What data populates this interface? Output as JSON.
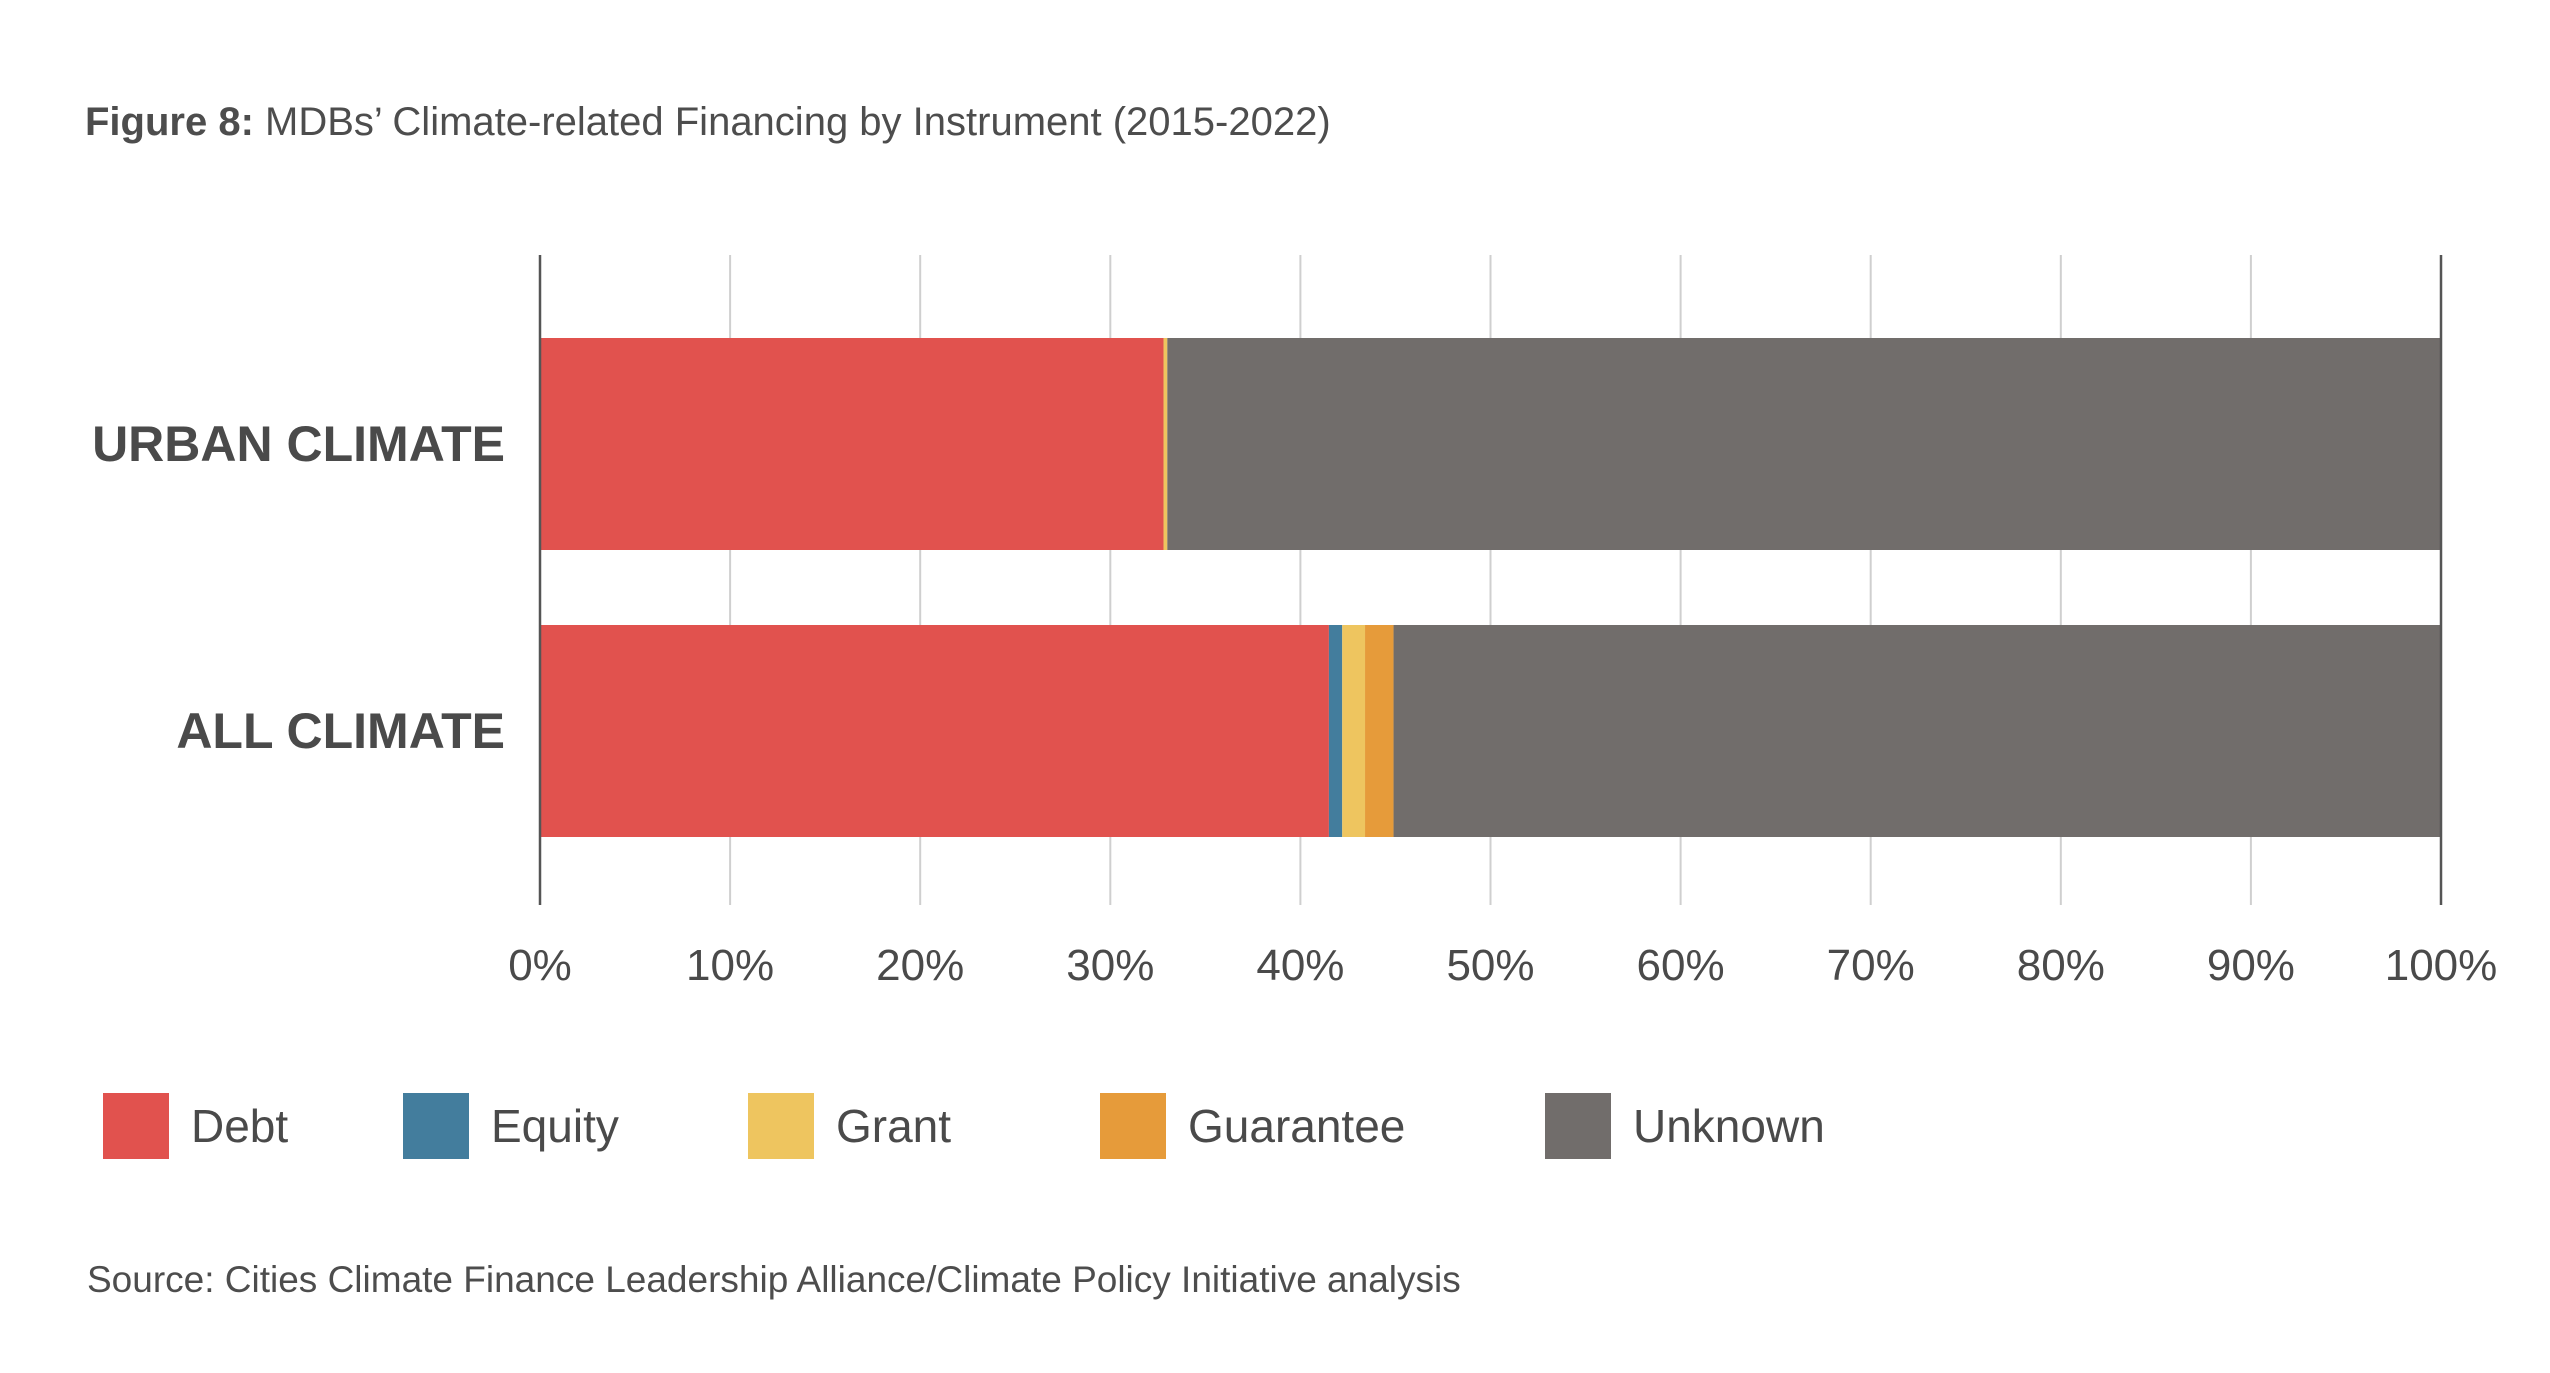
{
  "title": {
    "prefix": "Figure 8:",
    "text": " MDBs’ Climate-related Financing by Instrument (2015-2022)"
  },
  "source": "Source: Cities Climate Finance Leadership Alliance/Climate Policy Initiative analysis",
  "legend": [
    {
      "label": "Debt",
      "color": "#e1524e"
    },
    {
      "label": "Equity",
      "color": "#437d9d"
    },
    {
      "label": "Grant",
      "color": "#eec55f"
    },
    {
      "label": "Guarantee",
      "color": "#e69b3a"
    },
    {
      "label": "Unknown",
      "color": "#716d6b"
    }
  ],
  "chart_data": {
    "type": "bar",
    "orientation": "horizontal",
    "stacked": true,
    "title": "MDBs’ Climate-related Financing by Instrument (2015-2022)",
    "categories": [
      "URBAN CLIMATE",
      "ALL CLIMATE"
    ],
    "series": [
      {
        "name": "Debt",
        "color": "#e1524e",
        "values": [
          32.8,
          41.5
        ]
      },
      {
        "name": "Equity",
        "color": "#437d9d",
        "values": [
          0.0,
          0.7
        ]
      },
      {
        "name": "Grant",
        "color": "#eec55f",
        "values": [
          0.2,
          1.2
        ]
      },
      {
        "name": "Guarantee",
        "color": "#e69b3a",
        "values": [
          0.0,
          1.5
        ]
      },
      {
        "name": "Unknown",
        "color": "#716d6b",
        "values": [
          67.0,
          55.1
        ]
      }
    ],
    "xlim": [
      0,
      100
    ],
    "xticks": [
      "0%",
      "10%",
      "20%",
      "30%",
      "40%",
      "50%",
      "60%",
      "70%",
      "80%",
      "90%",
      "100%"
    ],
    "grid": true,
    "legend_position": "bottom"
  }
}
